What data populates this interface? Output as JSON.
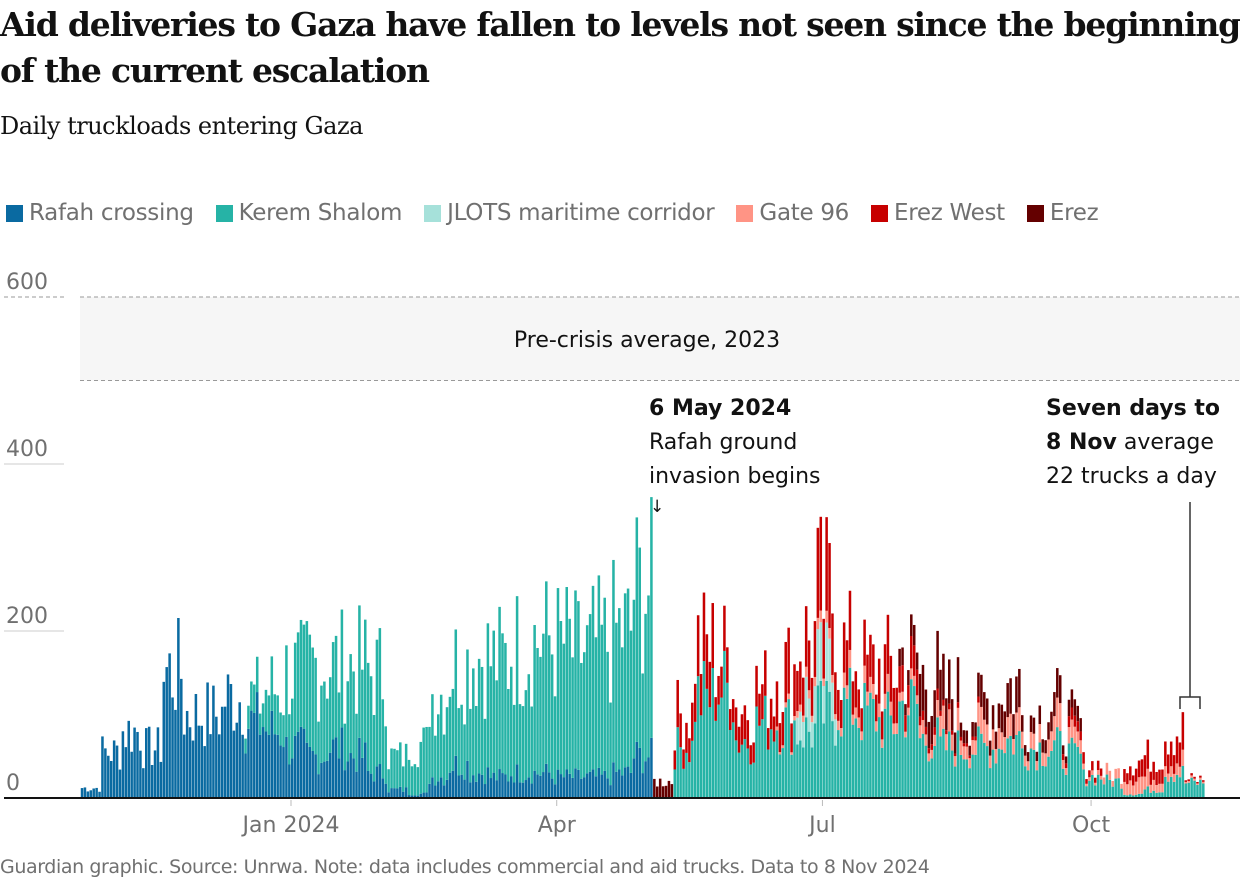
{
  "header": {
    "title": "Aid deliveries to Gaza have fallen to levels not seen since the beginning of the current escalation",
    "subtitle": "Daily truckloads entering Gaza"
  },
  "legend": [
    {
      "label": "Rafah crossing",
      "color": "#0a6aa1"
    },
    {
      "label": "Kerem Shalom",
      "color": "#26b3a6"
    },
    {
      "label": "JLOTS maritime corridor",
      "color": "#a6e1da"
    },
    {
      "label": "Gate 96",
      "color": "#ff9485"
    },
    {
      "label": "Erez West",
      "color": "#c70000"
    },
    {
      "label": "Erez",
      "color": "#640000"
    }
  ],
  "annotations": {
    "band_label": "Pre-crisis average, 2023",
    "rafah_date": "6 May 2024",
    "rafah_line1": "Rafah ground",
    "rafah_line2": "invasion begins",
    "arrow": "↓",
    "avg_line1": "Seven days to",
    "avg_bold": "8 Nov",
    "avg_rest": " average",
    "avg_line3": "22 trucks a day"
  },
  "footer": "Guardian graphic. Source: Unrwa. Note: data includes commercial and aid trucks. Data to 8 Nov 2024",
  "chart_data": {
    "type": "bar",
    "stacked": true,
    "title": "Daily truckloads entering Gaza",
    "xlabel": "",
    "ylabel": "",
    "ylim": [
      0,
      620
    ],
    "yticks": [
      0,
      200,
      400,
      600
    ],
    "ytick_labels": [
      "0",
      "200",
      "400",
      "600"
    ],
    "xticks": [
      {
        "label": "Jan 2024",
        "day": 0
      },
      {
        "label": "Apr",
        "day": 91
      },
      {
        "label": "Jul",
        "day": 182
      },
      {
        "label": "Oct",
        "day": 274
      }
    ],
    "x_start_day": -72,
    "x_end_day": 312,
    "reference_band": {
      "label": "Pre-crisis average, 2023",
      "from": 500,
      "to": 600
    },
    "events": [
      {
        "label": "6 May 2024 Rafah ground invasion begins",
        "day": 126
      },
      {
        "label": "Seven days to 8 Nov average 22 trucks a day",
        "from_day": 306,
        "to_day": 312,
        "value": 22
      }
    ],
    "series_order": [
      "Rafah crossing",
      "Kerem Shalom",
      "JLOTS maritime corridor",
      "Gate 96",
      "Erez West",
      "Erez"
    ],
    "weekly_note": "values are approximate weekly-resolution daily estimates read from the chart",
    "weeks": [
      {
        "start_day": -72,
        "Rafah crossing": 12,
        "Kerem Shalom": 0,
        "JLOTS maritime corridor": 0,
        "Gate 96": 0,
        "Erez West": 0,
        "Erez": 0
      },
      {
        "start_day": -65,
        "Rafah crossing": 55,
        "Kerem Shalom": 0,
        "JLOTS maritime corridor": 0,
        "Gate 96": 0,
        "Erez West": 0,
        "Erez": 0
      },
      {
        "start_day": -58,
        "Rafah crossing": 80,
        "Kerem Shalom": 0,
        "JLOTS maritime corridor": 0,
        "Gate 96": 0,
        "Erez West": 0,
        "Erez": 0
      },
      {
        "start_day": -51,
        "Rafah crossing": 60,
        "Kerem Shalom": 0,
        "JLOTS maritime corridor": 0,
        "Gate 96": 0,
        "Erez West": 0,
        "Erez": 0
      },
      {
        "start_day": -44,
        "Rafah crossing": 150,
        "Kerem Shalom": 0,
        "JLOTS maritime corridor": 0,
        "Gate 96": 0,
        "Erez West": 0,
        "Erez": 0
      },
      {
        "start_day": -37,
        "Rafah crossing": 100,
        "Kerem Shalom": 0,
        "JLOTS maritime corridor": 0,
        "Gate 96": 0,
        "Erez West": 0,
        "Erez": 0
      },
      {
        "start_day": -30,
        "Rafah crossing": 100,
        "Kerem Shalom": 0,
        "JLOTS maritime corridor": 0,
        "Gate 96": 0,
        "Erez West": 0,
        "Erez": 0
      },
      {
        "start_day": -23,
        "Rafah crossing": 120,
        "Kerem Shalom": 0,
        "JLOTS maritime corridor": 0,
        "Gate 96": 0,
        "Erez West": 0,
        "Erez": 0
      },
      {
        "start_day": -16,
        "Rafah crossing": 90,
        "Kerem Shalom": 30,
        "JLOTS maritime corridor": 0,
        "Gate 96": 0,
        "Erez West": 0,
        "Erez": 0
      },
      {
        "start_day": -9,
        "Rafah crossing": 80,
        "Kerem Shalom": 50,
        "JLOTS maritime corridor": 0,
        "Gate 96": 0,
        "Erez West": 0,
        "Erez": 0
      },
      {
        "start_day": -2,
        "Rafah crossing": 60,
        "Kerem Shalom": 90,
        "JLOTS maritime corridor": 0,
        "Gate 96": 0,
        "Erez West": 0,
        "Erez": 0
      },
      {
        "start_day": 5,
        "Rafah crossing": 50,
        "Kerem Shalom": 110,
        "JLOTS maritime corridor": 0,
        "Gate 96": 0,
        "Erez West": 0,
        "Erez": 0
      },
      {
        "start_day": 12,
        "Rafah crossing": 60,
        "Kerem Shalom": 100,
        "JLOTS maritime corridor": 0,
        "Gate 96": 0,
        "Erez West": 0,
        "Erez": 0
      },
      {
        "start_day": 19,
        "Rafah crossing": 50,
        "Kerem Shalom": 110,
        "JLOTS maritime corridor": 0,
        "Gate 96": 0,
        "Erez West": 0,
        "Erez": 0
      },
      {
        "start_day": 26,
        "Rafah crossing": 30,
        "Kerem Shalom": 120,
        "JLOTS maritime corridor": 0,
        "Gate 96": 0,
        "Erez West": 0,
        "Erez": 0
      },
      {
        "start_day": 33,
        "Rafah crossing": 10,
        "Kerem Shalom": 40,
        "JLOTS maritime corridor": 0,
        "Gate 96": 0,
        "Erez West": 0,
        "Erez": 0
      },
      {
        "start_day": 40,
        "Rafah crossing": 5,
        "Kerem Shalom": 60,
        "JLOTS maritime corridor": 0,
        "Gate 96": 0,
        "Erez West": 0,
        "Erez": 0
      },
      {
        "start_day": 47,
        "Rafah crossing": 25,
        "Kerem Shalom": 100,
        "JLOTS maritime corridor": 0,
        "Gate 96": 0,
        "Erez West": 0,
        "Erez": 0
      },
      {
        "start_day": 54,
        "Rafah crossing": 40,
        "Kerem Shalom": 120,
        "JLOTS maritime corridor": 0,
        "Gate 96": 0,
        "Erez West": 0,
        "Erez": 0
      },
      {
        "start_day": 61,
        "Rafah crossing": 30,
        "Kerem Shalom": 140,
        "JLOTS maritime corridor": 0,
        "Gate 96": 0,
        "Erez West": 0,
        "Erez": 0
      },
      {
        "start_day": 68,
        "Rafah crossing": 25,
        "Kerem Shalom": 140,
        "JLOTS maritime corridor": 0,
        "Gate 96": 0,
        "Erez West": 0,
        "Erez": 0
      },
      {
        "start_day": 75,
        "Rafah crossing": 30,
        "Kerem Shalom": 150,
        "JLOTS maritime corridor": 0,
        "Gate 96": 0,
        "Erez West": 0,
        "Erez": 0
      },
      {
        "start_day": 82,
        "Rafah crossing": 30,
        "Kerem Shalom": 160,
        "JLOTS maritime corridor": 0,
        "Gate 96": 0,
        "Erez West": 0,
        "Erez": 0
      },
      {
        "start_day": 89,
        "Rafah crossing": 25,
        "Kerem Shalom": 160,
        "JLOTS maritime corridor": 0,
        "Gate 96": 0,
        "Erez West": 0,
        "Erez": 0
      },
      {
        "start_day": 96,
        "Rafah crossing": 25,
        "Kerem Shalom": 150,
        "JLOTS maritime corridor": 0,
        "Gate 96": 0,
        "Erez West": 0,
        "Erez": 0
      },
      {
        "start_day": 103,
        "Rafah crossing": 25,
        "Kerem Shalom": 160,
        "JLOTS maritime corridor": 0,
        "Gate 96": 0,
        "Erez West": 0,
        "Erez": 0
      },
      {
        "start_day": 110,
        "Rafah crossing": 30,
        "Kerem Shalom": 170,
        "JLOTS maritime corridor": 0,
        "Gate 96": 0,
        "Erez West": 0,
        "Erez": 0
      },
      {
        "start_day": 117,
        "Rafah crossing": 50,
        "Kerem Shalom": 200,
        "JLOTS maritime corridor": 0,
        "Gate 96": 0,
        "Erez West": 0,
        "Erez": 0
      },
      {
        "start_day": 124,
        "Rafah crossing": 0,
        "Kerem Shalom": 0,
        "JLOTS maritime corridor": 0,
        "Gate 96": 0,
        "Erez West": 0,
        "Erez": 20
      },
      {
        "start_day": 131,
        "Rafah crossing": 0,
        "Kerem Shalom": 60,
        "JLOTS maritime corridor": 0,
        "Gate 96": 0,
        "Erez West": 40,
        "Erez": 0
      },
      {
        "start_day": 138,
        "Rafah crossing": 0,
        "Kerem Shalom": 120,
        "JLOTS maritime corridor": 0,
        "Gate 96": 0,
        "Erez West": 60,
        "Erez": 0
      },
      {
        "start_day": 145,
        "Rafah crossing": 0,
        "Kerem Shalom": 130,
        "JLOTS maritime corridor": 0,
        "Gate 96": 0,
        "Erez West": 40,
        "Erez": 0
      },
      {
        "start_day": 152,
        "Rafah crossing": 0,
        "Kerem Shalom": 70,
        "JLOTS maritime corridor": 0,
        "Gate 96": 0,
        "Erez West": 40,
        "Erez": 0
      },
      {
        "start_day": 159,
        "Rafah crossing": 0,
        "Kerem Shalom": 90,
        "JLOTS maritime corridor": 0,
        "Gate 96": 0,
        "Erez West": 40,
        "Erez": 0
      },
      {
        "start_day": 166,
        "Rafah crossing": 0,
        "Kerem Shalom": 90,
        "JLOTS maritime corridor": 0,
        "Gate 96": 5,
        "Erez West": 60,
        "Erez": 0
      },
      {
        "start_day": 173,
        "Rafah crossing": 0,
        "Kerem Shalom": 80,
        "JLOTS maritime corridor": 40,
        "Gate 96": 10,
        "Erez West": 60,
        "Erez": 0
      },
      {
        "start_day": 180,
        "Rafah crossing": 0,
        "Kerem Shalom": 100,
        "JLOTS maritime corridor": 50,
        "Gate 96": 10,
        "Erez West": 80,
        "Erez": 0
      },
      {
        "start_day": 187,
        "Rafah crossing": 0,
        "Kerem Shalom": 110,
        "JLOTS maritime corridor": 0,
        "Gate 96": 15,
        "Erez West": 50,
        "Erez": 0
      },
      {
        "start_day": 194,
        "Rafah crossing": 0,
        "Kerem Shalom": 100,
        "JLOTS maritime corridor": 0,
        "Gate 96": 15,
        "Erez West": 40,
        "Erez": 0
      },
      {
        "start_day": 201,
        "Rafah crossing": 0,
        "Kerem Shalom": 90,
        "JLOTS maritime corridor": 0,
        "Gate 96": 15,
        "Erez West": 50,
        "Erez": 0
      },
      {
        "start_day": 208,
        "Rafah crossing": 0,
        "Kerem Shalom": 110,
        "JLOTS maritime corridor": 0,
        "Gate 96": 10,
        "Erez West": 30,
        "Erez": 20
      },
      {
        "start_day": 215,
        "Rafah crossing": 0,
        "Kerem Shalom": 70,
        "JLOTS maritime corridor": 0,
        "Gate 96": 15,
        "Erez West": 10,
        "Erez": 50
      },
      {
        "start_day": 222,
        "Rafah crossing": 0,
        "Kerem Shalom": 60,
        "JLOTS maritime corridor": 0,
        "Gate 96": 20,
        "Erez West": 5,
        "Erez": 40
      },
      {
        "start_day": 229,
        "Rafah crossing": 0,
        "Kerem Shalom": 60,
        "JLOTS maritime corridor": 0,
        "Gate 96": 20,
        "Erez West": 5,
        "Erez": 20
      },
      {
        "start_day": 236,
        "Rafah crossing": 0,
        "Kerem Shalom": 60,
        "JLOTS maritime corridor": 0,
        "Gate 96": 25,
        "Erez West": 0,
        "Erez": 30
      },
      {
        "start_day": 243,
        "Rafah crossing": 0,
        "Kerem Shalom": 70,
        "JLOTS maritime corridor": 0,
        "Gate 96": 25,
        "Erez West": 0,
        "Erez": 40
      },
      {
        "start_day": 250,
        "Rafah crossing": 0,
        "Kerem Shalom": 60,
        "JLOTS maritime corridor": 0,
        "Gate 96": 20,
        "Erez West": 0,
        "Erez": 20
      },
      {
        "start_day": 257,
        "Rafah crossing": 0,
        "Kerem Shalom": 60,
        "JLOTS maritime corridor": 0,
        "Gate 96": 25,
        "Erez West": 0,
        "Erez": 25
      },
      {
        "start_day": 264,
        "Rafah crossing": 0,
        "Kerem Shalom": 50,
        "JLOTS maritime corridor": 0,
        "Gate 96": 15,
        "Erez West": 10,
        "Erez": 15
      },
      {
        "start_day": 271,
        "Rafah crossing": 0,
        "Kerem Shalom": 25,
        "JLOTS maritime corridor": 0,
        "Gate 96": 5,
        "Erez West": 10,
        "Erez": 0
      },
      {
        "start_day": 278,
        "Rafah crossing": 0,
        "Kerem Shalom": 20,
        "JLOTS maritime corridor": 0,
        "Gate 96": 10,
        "Erez West": 0,
        "Erez": 0
      },
      {
        "start_day": 285,
        "Rafah crossing": 0,
        "Kerem Shalom": 5,
        "JLOTS maritime corridor": 0,
        "Gate 96": 20,
        "Erez West": 20,
        "Erez": 0
      },
      {
        "start_day": 292,
        "Rafah crossing": 0,
        "Kerem Shalom": 10,
        "JLOTS maritime corridor": 0,
        "Gate 96": 15,
        "Erez West": 25,
        "Erez": 0
      },
      {
        "start_day": 299,
        "Rafah crossing": 0,
        "Kerem Shalom": 30,
        "JLOTS maritime corridor": 0,
        "Gate 96": 15,
        "Erez West": 35,
        "Erez": 0
      },
      {
        "start_day": 306,
        "Rafah crossing": 0,
        "Kerem Shalom": 18,
        "JLOTS maritime corridor": 0,
        "Gate 96": 2,
        "Erez West": 2,
        "Erez": 0
      }
    ]
  }
}
